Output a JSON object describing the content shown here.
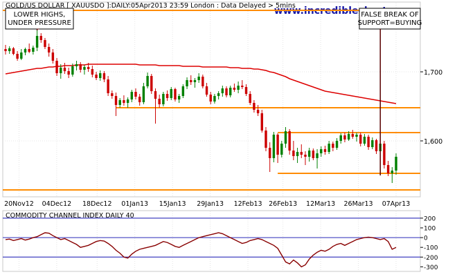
{
  "chart_data": [
    {
      "type": "candlestick",
      "title": "GOLD/US DOLLAR [ XAUUSDO ]:DAILY:05Apr2013 23:59 London : Data Delayed > 5mins",
      "watermark": "www.incrediblecharts.com",
      "y_axis_side": "right",
      "ylim": [
        1520,
        1800
      ],
      "y_ticks": [
        {
          "value": 1700,
          "label": "1,700"
        },
        {
          "value": 1600,
          "label": "1,600"
        }
      ],
      "x_ticks": [
        "20Nov12",
        "04Dec12",
        "18Dec12",
        "01Jan13",
        "15Jan13",
        "29Jan13",
        "12Feb13",
        "26Feb13",
        "12Mar13",
        "26Mar13",
        "07Apr13"
      ],
      "grid": true,
      "candles": [
        {
          "o": 1733,
          "h": 1739,
          "l": 1725,
          "c": 1730
        },
        {
          "o": 1730,
          "h": 1737,
          "l": 1726,
          "c": 1734
        },
        {
          "o": 1734,
          "h": 1736,
          "l": 1724,
          "c": 1726
        },
        {
          "o": 1726,
          "h": 1730,
          "l": 1716,
          "c": 1719
        },
        {
          "o": 1719,
          "h": 1733,
          "l": 1717,
          "c": 1728
        },
        {
          "o": 1728,
          "h": 1735,
          "l": 1724,
          "c": 1733
        },
        {
          "o": 1733,
          "h": 1741,
          "l": 1727,
          "c": 1729
        },
        {
          "o": 1729,
          "h": 1738,
          "l": 1725,
          "c": 1735
        },
        {
          "o": 1735,
          "h": 1760,
          "l": 1730,
          "c": 1752
        },
        {
          "o": 1752,
          "h": 1756,
          "l": 1742,
          "c": 1746
        },
        {
          "o": 1746,
          "h": 1749,
          "l": 1733,
          "c": 1736
        },
        {
          "o": 1736,
          "h": 1741,
          "l": 1722,
          "c": 1728
        },
        {
          "o": 1728,
          "h": 1733,
          "l": 1712,
          "c": 1716
        },
        {
          "o": 1716,
          "h": 1720,
          "l": 1694,
          "c": 1698
        },
        {
          "o": 1698,
          "h": 1711,
          "l": 1690,
          "c": 1706
        },
        {
          "o": 1706,
          "h": 1713,
          "l": 1697,
          "c": 1701
        },
        {
          "o": 1701,
          "h": 1706,
          "l": 1691,
          "c": 1696
        },
        {
          "o": 1696,
          "h": 1712,
          "l": 1693,
          "c": 1708
        },
        {
          "o": 1708,
          "h": 1716,
          "l": 1702,
          "c": 1711
        },
        {
          "o": 1711,
          "h": 1714,
          "l": 1699,
          "c": 1703
        },
        {
          "o": 1703,
          "h": 1710,
          "l": 1696,
          "c": 1707
        },
        {
          "o": 1707,
          "h": 1713,
          "l": 1700,
          "c": 1704
        },
        {
          "o": 1704,
          "h": 1709,
          "l": 1692,
          "c": 1696
        },
        {
          "o": 1696,
          "h": 1700,
          "l": 1688,
          "c": 1691
        },
        {
          "o": 1691,
          "h": 1702,
          "l": 1687,
          "c": 1698
        },
        {
          "o": 1698,
          "h": 1701,
          "l": 1685,
          "c": 1689
        },
        {
          "o": 1689,
          "h": 1694,
          "l": 1665,
          "c": 1669
        },
        {
          "o": 1669,
          "h": 1673,
          "l": 1661,
          "c": 1665
        },
        {
          "o": 1665,
          "h": 1670,
          "l": 1636,
          "c": 1652
        },
        {
          "o": 1652,
          "h": 1662,
          "l": 1648,
          "c": 1659
        },
        {
          "o": 1659,
          "h": 1666,
          "l": 1651,
          "c": 1655
        },
        {
          "o": 1655,
          "h": 1663,
          "l": 1648,
          "c": 1660
        },
        {
          "o": 1660,
          "h": 1674,
          "l": 1656,
          "c": 1671
        },
        {
          "o": 1671,
          "h": 1676,
          "l": 1660,
          "c": 1664
        },
        {
          "o": 1664,
          "h": 1668,
          "l": 1651,
          "c": 1656
        },
        {
          "o": 1656,
          "h": 1684,
          "l": 1653,
          "c": 1679
        },
        {
          "o": 1679,
          "h": 1699,
          "l": 1676,
          "c": 1694
        },
        {
          "o": 1694,
          "h": 1697,
          "l": 1668,
          "c": 1672
        },
        {
          "o": 1672,
          "h": 1676,
          "l": 1625,
          "c": 1661
        },
        {
          "o": 1661,
          "h": 1667,
          "l": 1648,
          "c": 1653
        },
        {
          "o": 1653,
          "h": 1671,
          "l": 1650,
          "c": 1668
        },
        {
          "o": 1668,
          "h": 1673,
          "l": 1658,
          "c": 1662
        },
        {
          "o": 1662,
          "h": 1678,
          "l": 1659,
          "c": 1675
        },
        {
          "o": 1675,
          "h": 1677,
          "l": 1657,
          "c": 1660
        },
        {
          "o": 1660,
          "h": 1668,
          "l": 1655,
          "c": 1665
        },
        {
          "o": 1665,
          "h": 1682,
          "l": 1662,
          "c": 1679
        },
        {
          "o": 1679,
          "h": 1692,
          "l": 1675,
          "c": 1688
        },
        {
          "o": 1688,
          "h": 1695,
          "l": 1681,
          "c": 1685
        },
        {
          "o": 1685,
          "h": 1691,
          "l": 1677,
          "c": 1688
        },
        {
          "o": 1688,
          "h": 1698,
          "l": 1684,
          "c": 1693
        },
        {
          "o": 1693,
          "h": 1696,
          "l": 1676,
          "c": 1679
        },
        {
          "o": 1679,
          "h": 1684,
          "l": 1664,
          "c": 1667
        },
        {
          "o": 1667,
          "h": 1671,
          "l": 1653,
          "c": 1657
        },
        {
          "o": 1657,
          "h": 1668,
          "l": 1654,
          "c": 1665
        },
        {
          "o": 1665,
          "h": 1672,
          "l": 1660,
          "c": 1669
        },
        {
          "o": 1669,
          "h": 1680,
          "l": 1664,
          "c": 1676
        },
        {
          "o": 1676,
          "h": 1679,
          "l": 1663,
          "c": 1666
        },
        {
          "o": 1666,
          "h": 1680,
          "l": 1663,
          "c": 1677
        },
        {
          "o": 1677,
          "h": 1683,
          "l": 1671,
          "c": 1674
        },
        {
          "o": 1674,
          "h": 1686,
          "l": 1669,
          "c": 1680
        },
        {
          "o": 1680,
          "h": 1688,
          "l": 1675,
          "c": 1678
        },
        {
          "o": 1678,
          "h": 1682,
          "l": 1665,
          "c": 1668
        },
        {
          "o": 1668,
          "h": 1672,
          "l": 1652,
          "c": 1655
        },
        {
          "o": 1655,
          "h": 1659,
          "l": 1641,
          "c": 1645
        },
        {
          "o": 1645,
          "h": 1652,
          "l": 1636,
          "c": 1640
        },
        {
          "o": 1640,
          "h": 1645,
          "l": 1612,
          "c": 1615
        },
        {
          "o": 1615,
          "h": 1620,
          "l": 1585,
          "c": 1590
        },
        {
          "o": 1590,
          "h": 1598,
          "l": 1555,
          "c": 1575
        },
        {
          "o": 1575,
          "h": 1613,
          "l": 1569,
          "c": 1609
        },
        {
          "o": 1609,
          "h": 1611,
          "l": 1568,
          "c": 1580
        },
        {
          "o": 1580,
          "h": 1600,
          "l": 1576,
          "c": 1596
        },
        {
          "o": 1596,
          "h": 1620,
          "l": 1590,
          "c": 1614
        },
        {
          "o": 1614,
          "h": 1617,
          "l": 1580,
          "c": 1586
        },
        {
          "o": 1586,
          "h": 1600,
          "l": 1572,
          "c": 1578
        },
        {
          "o": 1578,
          "h": 1590,
          "l": 1568,
          "c": 1584
        },
        {
          "o": 1584,
          "h": 1595,
          "l": 1575,
          "c": 1580
        },
        {
          "o": 1580,
          "h": 1585,
          "l": 1565,
          "c": 1577
        },
        {
          "o": 1577,
          "h": 1590,
          "l": 1570,
          "c": 1586
        },
        {
          "o": 1586,
          "h": 1589,
          "l": 1572,
          "c": 1575
        },
        {
          "o": 1575,
          "h": 1588,
          "l": 1560,
          "c": 1582
        },
        {
          "o": 1582,
          "h": 1592,
          "l": 1577,
          "c": 1588
        },
        {
          "o": 1588,
          "h": 1593,
          "l": 1580,
          "c": 1584
        },
        {
          "o": 1584,
          "h": 1600,
          "l": 1581,
          "c": 1596
        },
        {
          "o": 1596,
          "h": 1599,
          "l": 1585,
          "c": 1590
        },
        {
          "o": 1590,
          "h": 1604,
          "l": 1587,
          "c": 1600
        },
        {
          "o": 1600,
          "h": 1611,
          "l": 1596,
          "c": 1608
        },
        {
          "o": 1608,
          "h": 1612,
          "l": 1598,
          "c": 1602
        },
        {
          "o": 1602,
          "h": 1614,
          "l": 1600,
          "c": 1610
        },
        {
          "o": 1610,
          "h": 1616,
          "l": 1603,
          "c": 1606
        },
        {
          "o": 1606,
          "h": 1612,
          "l": 1599,
          "c": 1609
        },
        {
          "o": 1609,
          "h": 1612,
          "l": 1592,
          "c": 1596
        },
        {
          "o": 1596,
          "h": 1610,
          "l": 1593,
          "c": 1606
        },
        {
          "o": 1606,
          "h": 1609,
          "l": 1587,
          "c": 1591
        },
        {
          "o": 1591,
          "h": 1605,
          "l": 1588,
          "c": 1601
        },
        {
          "o": 1601,
          "h": 1603,
          "l": 1581,
          "c": 1585
        },
        {
          "o": 1585,
          "h": 1600,
          "l": 1550,
          "c": 1596
        },
        {
          "o": 1596,
          "h": 1600,
          "l": 1560,
          "c": 1565
        },
        {
          "o": 1565,
          "h": 1571,
          "l": 1549,
          "c": 1553
        },
        {
          "o": 1553,
          "h": 1562,
          "l": 1539,
          "c": 1557
        },
        {
          "o": 1557,
          "h": 1582,
          "l": 1551,
          "c": 1577
        }
      ],
      "moving_average": [
        1697,
        1698,
        1699,
        1700,
        1701,
        1702,
        1703,
        1704,
        1705,
        1705,
        1706,
        1707,
        1707,
        1708,
        1708,
        1709,
        1709,
        1709,
        1710,
        1710,
        1710,
        1711,
        1711,
        1711,
        1711,
        1711,
        1711,
        1711,
        1711,
        1711,
        1711,
        1711,
        1711,
        1711,
        1710,
        1710,
        1710,
        1710,
        1710,
        1709,
        1709,
        1709,
        1709,
        1709,
        1709,
        1708,
        1708,
        1708,
        1708,
        1708,
        1707,
        1707,
        1707,
        1707,
        1707,
        1707,
        1707,
        1706,
        1706,
        1706,
        1705,
        1705,
        1705,
        1704,
        1704,
        1703,
        1702,
        1700,
        1699,
        1697,
        1695,
        1693,
        1690,
        1688,
        1686,
        1684,
        1682,
        1680,
        1678,
        1676,
        1674,
        1672,
        1671,
        1670,
        1669,
        1668,
        1667,
        1666,
        1665,
        1664,
        1663,
        1662,
        1661,
        1660,
        1659,
        1658,
        1657,
        1656,
        1655,
        1654
      ],
      "horizontal_lines": [
        {
          "value": 1789,
          "x_start_index": 0
        },
        {
          "value": 1648,
          "x_start_index": 28
        },
        {
          "value": 1612,
          "x_start_index": 69
        },
        {
          "value": 1553,
          "x_start_index": 69
        },
        {
          "value": 1529,
          "x_start_index": 0
        }
      ],
      "annotations": [
        {
          "text": [
            "LOWER HIGHS,",
            "UNDER PRESSURE"
          ],
          "position": "top-left",
          "points_to_index": 8
        },
        {
          "text": [
            "FALSE BREAK OF",
            "SUPPORT=BUYING"
          ],
          "position": "top-right",
          "points_to_index": 95
        }
      ],
      "colors": {
        "up": "#008000",
        "down": "#cc0000",
        "moving_average": "#dd0000",
        "horizontal_lines": "#ff8c00"
      }
    },
    {
      "type": "line",
      "title": "COMMODITY CHANNEL INDEX DAILY 40",
      "y_axis_side": "right",
      "ylim": [
        -340,
        270
      ],
      "y_ticks": [
        {
          "value": 200,
          "label": "200"
        },
        {
          "value": 100,
          "label": "100"
        },
        {
          "value": 0,
          "label": "0"
        },
        {
          "value": -100,
          "label": "-100"
        },
        {
          "value": -200,
          "label": "-200"
        },
        {
          "value": -300,
          "label": "-300"
        }
      ],
      "reference_lines": [
        200,
        0,
        -200
      ],
      "series": [
        {
          "values": [
            -20,
            -15,
            -30,
            -20,
            -10,
            -25,
            -15,
            0,
            10,
            30,
            50,
            45,
            20,
            0,
            -20,
            -10,
            -30,
            -50,
            -70,
            -100,
            -90,
            -80,
            -60,
            -40,
            -30,
            -35,
            -60,
            -90,
            -130,
            -160,
            -200,
            -210,
            -170,
            -140,
            -120,
            -110,
            -100,
            -90,
            -80,
            -60,
            -40,
            -50,
            -70,
            -90,
            -100,
            -80,
            -60,
            -40,
            -20,
            0,
            10,
            20,
            30,
            40,
            50,
            40,
            20,
            0,
            -20,
            -40,
            -60,
            -50,
            -30,
            -20,
            -10,
            -20,
            -40,
            -60,
            -80,
            -110,
            -180,
            -250,
            -270,
            -230,
            -260,
            -300,
            -280,
            -220,
            -180,
            -150,
            -130,
            -140,
            -120,
            -90,
            -70,
            -60,
            -80,
            -60,
            -40,
            -20,
            -10,
            0,
            5,
            0,
            -10,
            -20,
            -10,
            -40,
            -120,
            -100
          ],
          "color": "#880000"
        }
      ],
      "colors": {
        "reference_lines": "#4040c0"
      }
    }
  ]
}
